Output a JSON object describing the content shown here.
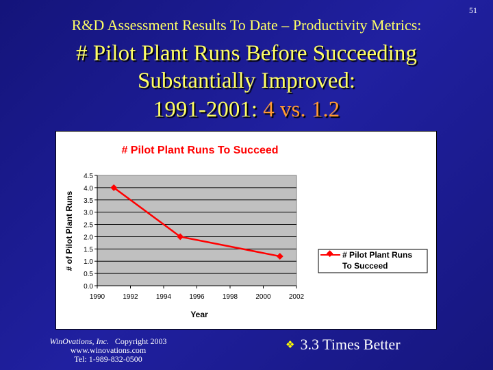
{
  "page_number": "51",
  "subtitle": "R&D Assessment Results To Date – Productivity Metrics:",
  "title_line1": "# Pilot Plant Runs Before Succeeding",
  "title_line2": "Substantially Improved:",
  "title_line3_a": "1991-2001: ",
  "title_line3_b": "4 vs. 1.2",
  "footer": {
    "company": "WinOvations, Inc.",
    "copyright": "Copyright 2003",
    "url": "www.winovations.com",
    "tel": "Tel:  1-989-832-0500"
  },
  "bullet": "3.3 Times Better",
  "colors": {
    "series": "#ff0000",
    "plot_bg": "#c0c0c0",
    "title": "#ffff66",
    "highlight": "#ff9933"
  },
  "chart_data": {
    "type": "line",
    "title": "# Pilot Plant Runs To Succeed",
    "xlabel": "Year",
    "ylabel": "# of Pilot Plant Runs",
    "xlim": [
      1990,
      2002
    ],
    "ylim": [
      0,
      4.5
    ],
    "xticks": [
      "1990",
      "1992",
      "1994",
      "1996",
      "1998",
      "2000",
      "2002"
    ],
    "yticks": [
      "0.0",
      "0.5",
      "1.0",
      "1.5",
      "2.0",
      "2.5",
      "3.0",
      "3.5",
      "4.0",
      "4.5"
    ],
    "grid": true,
    "legend_position": "right",
    "series": [
      {
        "name": "# Pilot Plant Runs To Succeed",
        "legend_line1": "# Pilot Plant Runs",
        "legend_line2": "To Succeed",
        "x": [
          1991,
          1995,
          2001
        ],
        "y": [
          4,
          2,
          1.2
        ]
      }
    ]
  }
}
